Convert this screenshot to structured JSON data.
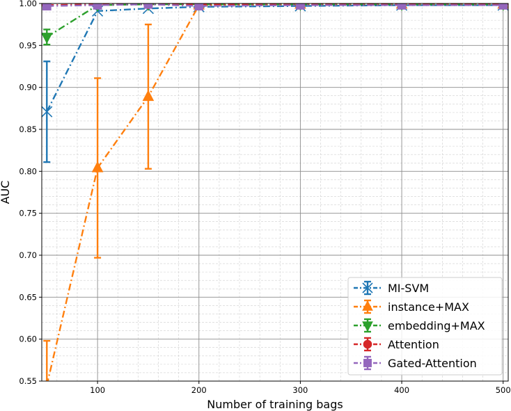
{
  "chart_data": {
    "type": "line",
    "title": "",
    "xlabel": "Number of training bags",
    "ylabel": "AUC",
    "xlim": [
      45,
      505
    ],
    "ylim": [
      0.55,
      1.0
    ],
    "xticks": [
      100,
      200,
      300,
      400,
      500
    ],
    "yticks": [
      0.55,
      0.6,
      0.65,
      0.7,
      0.75,
      0.8,
      0.85,
      0.9,
      0.95,
      1.0
    ],
    "ytick_labels": [
      "0.55",
      "0.60",
      "0.65",
      "0.70",
      "0.75",
      "0.80",
      "0.85",
      "0.90",
      "0.95",
      "1.00"
    ],
    "grid": "major and minor",
    "legend_position": "lower-right",
    "x": [
      50,
      100,
      150,
      200,
      300,
      400,
      500
    ],
    "series": [
      {
        "name": "MI-SVM",
        "color": "#1f77b4",
        "marker": "x",
        "values": [
          0.871,
          0.991,
          0.994,
          0.996,
          0.997,
          0.998,
          0.998
        ],
        "errors": [
          0.06,
          0.004,
          0.003,
          0.002,
          0.001,
          0.001,
          0.001
        ]
      },
      {
        "name": "instance+MAX",
        "color": "#ff7f0e",
        "marker": "triangle-up",
        "values": [
          0.545,
          0.804,
          0.889,
          0.998,
          0.999,
          0.999,
          0.999
        ],
        "errors": [
          0.053,
          0.107,
          0.086,
          0.001,
          0.001,
          0.001,
          0.001
        ]
      },
      {
        "name": "embedding+MAX",
        "color": "#2ca02c",
        "marker": "triangle-down",
        "values": [
          0.96,
          0.998,
          0.999,
          0.999,
          0.999,
          0.999,
          0.999
        ],
        "errors": [
          0.009,
          0.001,
          0.001,
          0.001,
          0.001,
          0.001,
          0.001
        ]
      },
      {
        "name": "Attention",
        "color": "#d62728",
        "marker": "circle",
        "values": [
          0.998,
          0.999,
          0.999,
          0.999,
          0.999,
          0.999,
          0.999
        ],
        "errors": [
          0.001,
          0.001,
          0.001,
          0.001,
          0.001,
          0.001,
          0.001
        ]
      },
      {
        "name": "Gated-Attention",
        "color": "#9467bd",
        "marker": "square",
        "values": [
          0.997,
          0.998,
          0.999,
          0.997,
          0.998,
          0.998,
          0.998
        ],
        "errors": [
          0.001,
          0.001,
          0.001,
          0.001,
          0.001,
          0.001,
          0.001
        ]
      }
    ]
  }
}
